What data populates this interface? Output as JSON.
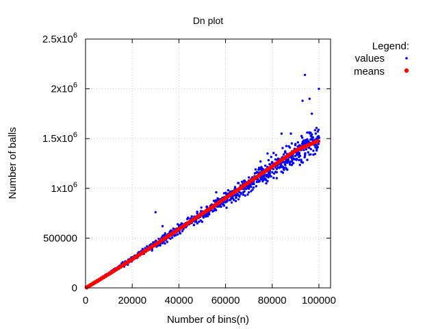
{
  "chart_data": {
    "type": "scatter",
    "title": "Dn plot",
    "xlabel": "Number of bins(n)",
    "ylabel": "Number of balls",
    "xlim": [
      0,
      105000
    ],
    "ylim": [
      0,
      2500000
    ],
    "grid": true,
    "legend_position": "top-right",
    "x_ticks": [
      {
        "value": 0,
        "label": "0"
      },
      {
        "value": 20000,
        "label": "20000"
      },
      {
        "value": 40000,
        "label": "40000"
      },
      {
        "value": 60000,
        "label": "60000"
      },
      {
        "value": 80000,
        "label": "80000"
      },
      {
        "value": 100000,
        "label": "100000"
      }
    ],
    "y_ticks": [
      {
        "value": 0,
        "mantissa": "0",
        "exponent": ""
      },
      {
        "value": 500000,
        "mantissa": "500000",
        "exponent": ""
      },
      {
        "value": 1000000,
        "mantissa": "1x10",
        "exponent": "6"
      },
      {
        "value": 1500000,
        "mantissa": "1.5x10",
        "exponent": "6"
      },
      {
        "value": 2000000,
        "mantissa": "2x10",
        "exponent": "6"
      },
      {
        "value": 2500000,
        "mantissa": "2.5x10",
        "exponent": "6"
      }
    ],
    "legend_title": "Legend:",
    "series": [
      {
        "name": "values",
        "color": "#0000ff",
        "marker": "small-dot",
        "x": [
          1000,
          5000,
          10000,
          15000,
          20000,
          25000,
          30000,
          35000,
          40000,
          45000,
          50000,
          55000,
          60000,
          65000,
          70000,
          75000,
          80000,
          85000,
          90000,
          95000,
          100000
        ],
        "y_low": [
          10000,
          60000,
          125000,
          190000,
          255000,
          320000,
          385000,
          450000,
          515000,
          580000,
          645000,
          710000,
          780000,
          845000,
          910000,
          975000,
          1040000,
          1100000,
          1170000,
          1230000,
          1290000
        ],
        "y_high": [
          16000,
          80000,
          160000,
          245000,
          330000,
          415000,
          500000,
          585000,
          665000,
          750000,
          835000,
          920000,
          1005000,
          1090000,
          1180000,
          1270000,
          1360000,
          1450000,
          1540000,
          1620000,
          1700000
        ],
        "outliers": [
          {
            "x": 30000,
            "y": 760000
          },
          {
            "x": 33000,
            "y": 620000
          },
          {
            "x": 56000,
            "y": 960000
          },
          {
            "x": 70000,
            "y": 1110000
          },
          {
            "x": 75000,
            "y": 1270000
          },
          {
            "x": 78000,
            "y": 1350000
          },
          {
            "x": 84000,
            "y": 1550000
          },
          {
            "x": 88000,
            "y": 1550000
          },
          {
            "x": 93000,
            "y": 1880000
          },
          {
            "x": 94000,
            "y": 2140000
          },
          {
            "x": 96000,
            "y": 1900000
          },
          {
            "x": 97000,
            "y": 1750000
          },
          {
            "x": 100000,
            "y": 2000000
          }
        ]
      },
      {
        "name": "means",
        "color": "#ff0000",
        "marker": "dot",
        "x": [
          1000,
          5000,
          10000,
          15000,
          20000,
          25000,
          30000,
          35000,
          40000,
          45000,
          50000,
          55000,
          60000,
          65000,
          70000,
          75000,
          80000,
          85000,
          90000,
          95000,
          100000
        ],
        "y": [
          12000,
          68000,
          140000,
          213000,
          287000,
          362000,
          437000,
          513000,
          590000,
          667000,
          745000,
          823000,
          902000,
          981000,
          1060000,
          1140000,
          1220000,
          1300000,
          1380000,
          1430000,
          1480000
        ]
      }
    ]
  }
}
